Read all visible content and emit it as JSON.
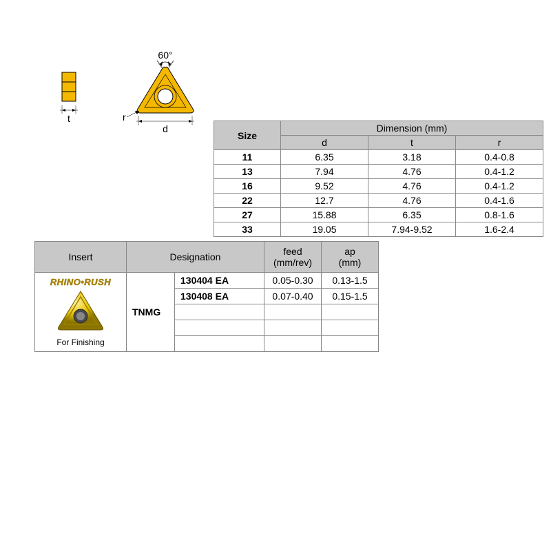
{
  "diagram": {
    "angle_label": "60°",
    "t_label": "t",
    "r_label": "r",
    "d_label": "d",
    "fill_color": "#f5b800",
    "stroke_color": "#000000"
  },
  "dim_table": {
    "header_size": "Size",
    "header_dimension": "Dimension (mm)",
    "cols": [
      "d",
      "t",
      "r"
    ],
    "rows": [
      {
        "size": "11",
        "d": "6.35",
        "t": "3.18",
        "r": "0.4-0.8"
      },
      {
        "size": "13",
        "d": "7.94",
        "t": "4.76",
        "r": "0.4-1.2"
      },
      {
        "size": "16",
        "d": "9.52",
        "t": "4.76",
        "r": "0.4-1.2"
      },
      {
        "size": "22",
        "d": "12.7",
        "t": "4.76",
        "r": "0.4-1.6"
      },
      {
        "size": "27",
        "d": "15.88",
        "t": "6.35",
        "r": "0.8-1.6"
      },
      {
        "size": "33",
        "d": "19.05",
        "t": "7.94-9.52",
        "r": "1.6-2.4"
      }
    ]
  },
  "insert_table": {
    "header_insert": "Insert",
    "header_designation": "Designation",
    "header_feed": "feed\n(mm/rev)",
    "header_ap": "ap\n(mm)",
    "brand": "RHINO•RUSH",
    "caption": "For Finishing",
    "type": "TNMG",
    "rows": [
      {
        "code": "130404 EA",
        "feed": "0.05-0.30",
        "ap": "0.13-1.5"
      },
      {
        "code": "130408 EA",
        "feed": "0.07-0.40",
        "ap": "0.15-1.5"
      },
      {
        "code": "",
        "feed": "",
        "ap": ""
      },
      {
        "code": "",
        "feed": "",
        "ap": ""
      },
      {
        "code": "",
        "feed": "",
        "ap": ""
      }
    ]
  }
}
